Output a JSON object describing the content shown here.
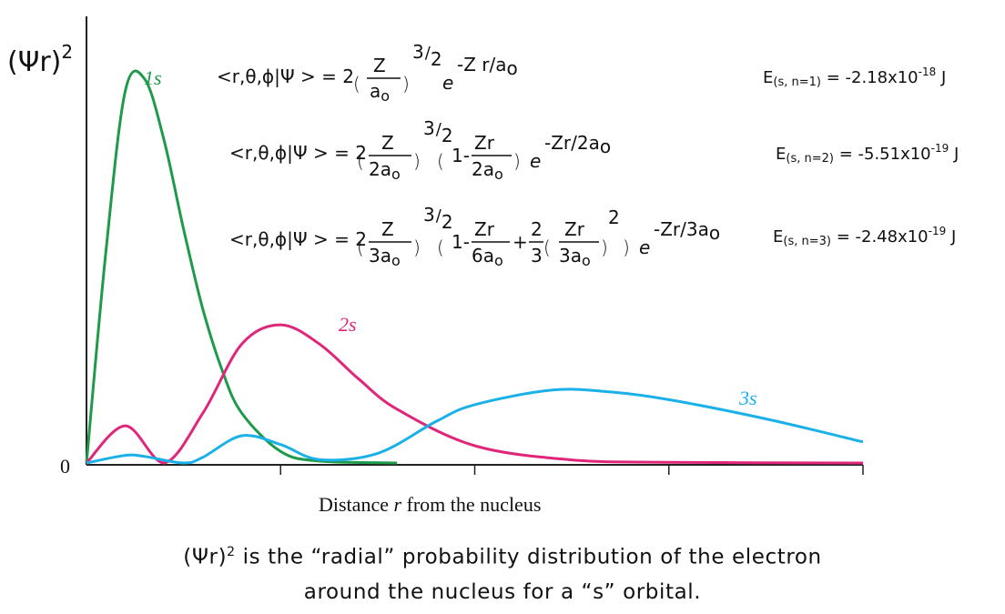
{
  "chart_data": {
    "type": "line",
    "ylabel": "(Ψr)",
    "ylabel_exponent": "2",
    "xlabel_prefix": "Distance ",
    "xlabel_var": "r",
    "xlabel_suffix": " from the nucleus",
    "y_zero_label": "0",
    "x_ticks": 4,
    "grid": false,
    "series": [
      {
        "name": "1s",
        "color": "#1f9a4b",
        "x": [
          0,
          1,
          2,
          3,
          4,
          5,
          6,
          7,
          8,
          10,
          12,
          16
        ],
        "y": [
          0,
          0.55,
          0.97,
          1.0,
          0.84,
          0.61,
          0.4,
          0.24,
          0.13,
          0.03,
          0.005,
          0
        ]
      },
      {
        "name": "2s",
        "color": "#e0267a",
        "x": [
          0,
          2,
          4,
          6,
          8,
          10,
          12,
          14,
          16,
          20,
          25,
          30,
          40
        ],
        "y": [
          0,
          0.097,
          0,
          0.13,
          0.31,
          0.36,
          0.31,
          0.22,
          0.14,
          0.045,
          0.008,
          0.002,
          0
        ]
      },
      {
        "name": "3s",
        "color": "#1ab0e8",
        "x": [
          0,
          2,
          3,
          5,
          6,
          8,
          10,
          12,
          15,
          18,
          20,
          24,
          27,
          30,
          35,
          40
        ],
        "y": [
          0,
          0.02,
          0.017,
          0,
          0.015,
          0.071,
          0.048,
          0.009,
          0.025,
          0.108,
          0.152,
          0.19,
          0.185,
          0.165,
          0.115,
          0.055
        ]
      }
    ]
  },
  "equations": [
    {
      "lhs": "<r,θ,ϕ|Ψ > = 2",
      "frac_num": "Z",
      "frac_den": "a",
      "frac_den_sub": "o",
      "power": "3",
      "power_den": "2",
      "inner_terms": [],
      "exp_prefix": "e",
      "exponent": "-Z r/a",
      "exponent_sub": "o"
    },
    {
      "lhs": "<r,θ,ϕ|Ψ > = 2",
      "frac_num": "Z",
      "frac_den": "2a",
      "frac_den_sub": "o",
      "power": "3",
      "power_den": "2",
      "inner_lead": "1-",
      "inner_terms": [
        {
          "num": "Zr",
          "den": "2a",
          "den_sub": "o"
        }
      ],
      "exp_prefix": "e",
      "exponent": "-Zr/2a",
      "exponent_sub": "o"
    },
    {
      "lhs": "<r,θ,ϕ|Ψ > = 2",
      "frac_num": "Z",
      "frac_den": "3a",
      "frac_den_sub": "o",
      "power": "3",
      "power_den": "2",
      "inner_lead": "1-",
      "inner_terms": [
        {
          "num": "Zr",
          "den": "6a",
          "den_sub": "o"
        }
      ],
      "plus": "+",
      "coef_num": "2",
      "coef_den": "3",
      "sq_num": "Zr",
      "sq_den": "3a",
      "sq_den_sub": "o",
      "sq_power": "2",
      "exp_prefix": "e",
      "exponent": "-Zr/3a",
      "exponent_sub": "o"
    }
  ],
  "energies": [
    {
      "label": "E",
      "sub": "(s, n=1)",
      "eq": " = -2.18x10",
      "exp": "-18",
      "unit": " J"
    },
    {
      "label": "E",
      "sub": "(s, n=2)",
      "eq": " = -5.51x10",
      "exp": "-19",
      "unit": " J"
    },
    {
      "label": "E",
      "sub": "(s, n=3)",
      "eq": " = -2.48x10",
      "exp": "-19",
      "unit": " J"
    }
  ],
  "caption": {
    "line1_a": "(Ψr)",
    "line1_sup": "2",
    "line1_b": " is the “radial” probability distribution of the electron",
    "line2": "around the nucleus for a “s” orbital."
  }
}
